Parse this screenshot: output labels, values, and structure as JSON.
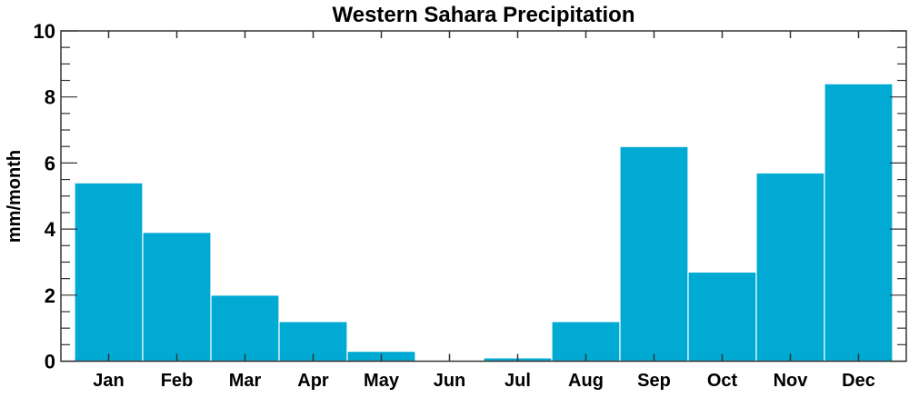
{
  "chart_data": {
    "type": "bar",
    "title": "Western Sahara Precipitation",
    "xlabel": "",
    "ylabel": "mm/month",
    "categories": [
      "Jan",
      "Feb",
      "Mar",
      "Apr",
      "May",
      "Jun",
      "Jul",
      "Aug",
      "Sep",
      "Oct",
      "Nov",
      "Dec"
    ],
    "values": [
      5.4,
      3.9,
      2.0,
      1.2,
      0.3,
      0.0,
      0.1,
      1.2,
      6.5,
      2.7,
      5.7,
      8.4
    ],
    "ylim": [
      0,
      10
    ],
    "yticks": [
      "0",
      "2",
      "4",
      "6",
      "8",
      "10"
    ],
    "grid": false,
    "bar_color": "#00aad2"
  }
}
